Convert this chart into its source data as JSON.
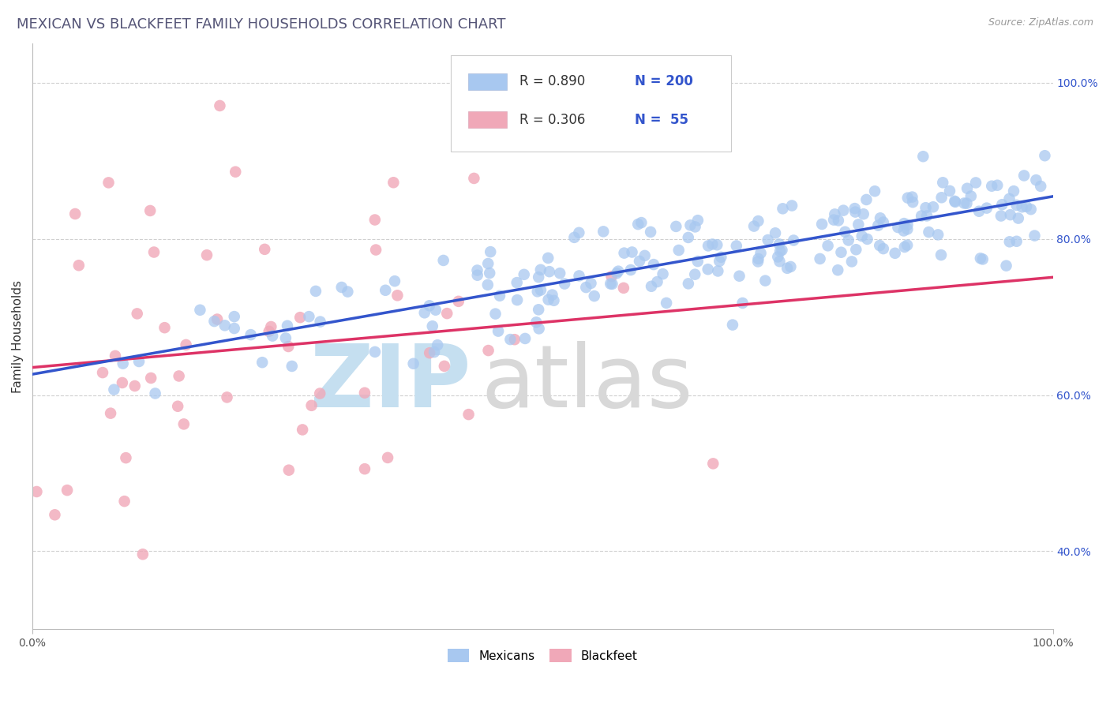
{
  "title": "MEXICAN VS BLACKFEET FAMILY HOUSEHOLDS CORRELATION CHART",
  "source_text": "Source: ZipAtlas.com",
  "ylabel": "Family Households",
  "xlim": [
    0,
    1
  ],
  "ylim_min": 0.3,
  "ylim_max": 1.05,
  "xtick_positions": [
    0.0,
    1.0
  ],
  "xtick_labels": [
    "0.0%",
    "100.0%"
  ],
  "ytick_positions": [
    0.4,
    0.6,
    0.8,
    1.0
  ],
  "ytick_labels": [
    "40.0%",
    "60.0%",
    "80.0%",
    "100.0%"
  ],
  "grid_color": "#d0d0d0",
  "background_color": "#ffffff",
  "blue_dot_color": "#a8c8f0",
  "pink_dot_color": "#f0a8b8",
  "blue_line_color": "#3355cc",
  "pink_line_color": "#dd3366",
  "blue_dot_alpha": 0.75,
  "pink_dot_alpha": 0.8,
  "dot_size": 110,
  "legend_R_blue": "R = 0.890",
  "legend_N_blue": "N = 200",
  "legend_R_pink": "R = 0.306",
  "legend_N_pink": "N =  55",
  "legend_color_blue": "#3355cc",
  "legend_color_pink": "#dd3366",
  "legend_label_blue": "Mexicans",
  "legend_label_pink": "Blackfeet",
  "title_color": "#555577",
  "title_fontsize": 13,
  "source_fontsize": 9,
  "axis_label_fontsize": 11,
  "tick_fontsize": 10,
  "legend_fontsize": 12,
  "n_blue": 200,
  "n_pink": 55,
  "blue_slope": 0.22,
  "blue_intercept": 0.63,
  "blue_noise_std": 0.032,
  "pink_slope": 0.175,
  "pink_intercept": 0.645,
  "pink_noise_std": 0.125,
  "seed_blue": 7,
  "seed_pink": 13,
  "watermark_zip_color": "#c5dff0",
  "watermark_atlas_color": "#d8d8d8"
}
